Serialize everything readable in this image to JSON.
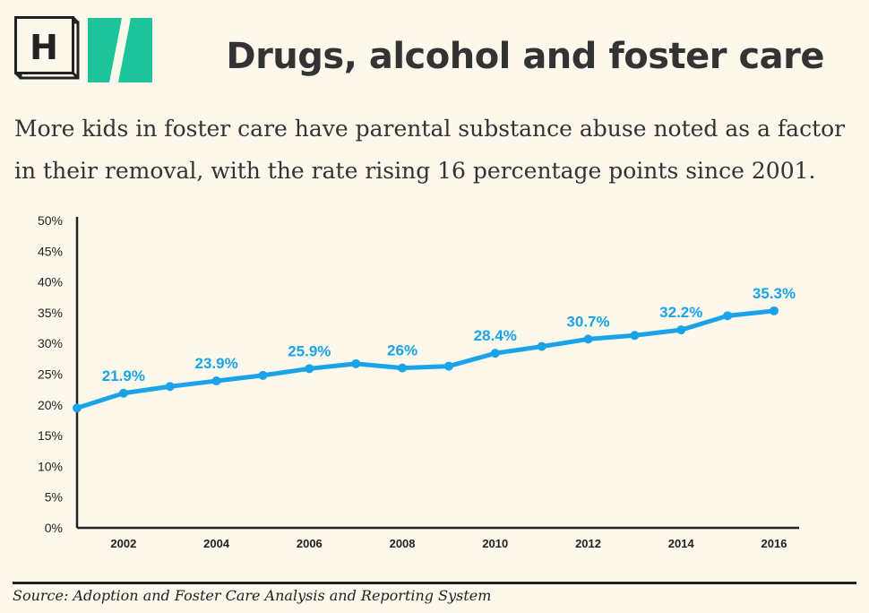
{
  "header": {
    "logo_letter": "H",
    "title": "Drugs, alcohol and foster care",
    "subtitle": "More kids in foster care have parental substance abuse noted as a factor in their removal, with the rate rising 16 percentage points since 2001."
  },
  "footer": {
    "source": "Source: Adoption and Foster Care Analysis and Reporting System"
  },
  "colors": {
    "line": "#1aa3e8",
    "label": "#1aa3e8",
    "logo_green": "#1dc49a",
    "text": "#333333",
    "background": "#fdf8ec"
  },
  "chart_data": {
    "type": "line",
    "title": "",
    "xlabel": "",
    "ylabel": "",
    "x": [
      2001,
      2002,
      2003,
      2004,
      2005,
      2006,
      2007,
      2008,
      2009,
      2010,
      2011,
      2012,
      2013,
      2014,
      2015,
      2016
    ],
    "values": [
      19.5,
      21.9,
      23.0,
      23.9,
      24.8,
      25.9,
      26.7,
      26.0,
      26.3,
      28.4,
      29.5,
      30.7,
      31.3,
      32.2,
      34.5,
      35.3
    ],
    "point_labels": [
      "",
      "21.9%",
      "",
      "23.9%",
      "",
      "25.9%",
      "",
      "26%",
      "",
      "28.4%",
      "",
      "30.7%",
      "",
      "32.2%",
      "",
      "35.3%"
    ],
    "x_ticks": [
      "2002",
      "2004",
      "2006",
      "2008",
      "2010",
      "2012",
      "2014",
      "2016"
    ],
    "x_tick_values": [
      2002,
      2004,
      2006,
      2008,
      2010,
      2012,
      2014,
      2016
    ],
    "y_ticks": [
      "0%",
      "5%",
      "10%",
      "15%",
      "20%",
      "25%",
      "30%",
      "35%",
      "40%",
      "45%",
      "50%"
    ],
    "y_tick_values": [
      0,
      5,
      10,
      15,
      20,
      25,
      30,
      35,
      40,
      45,
      50
    ],
    "xlim": [
      2001,
      2016
    ],
    "ylim": [
      0,
      50
    ],
    "grid": false,
    "legend": "none"
  }
}
